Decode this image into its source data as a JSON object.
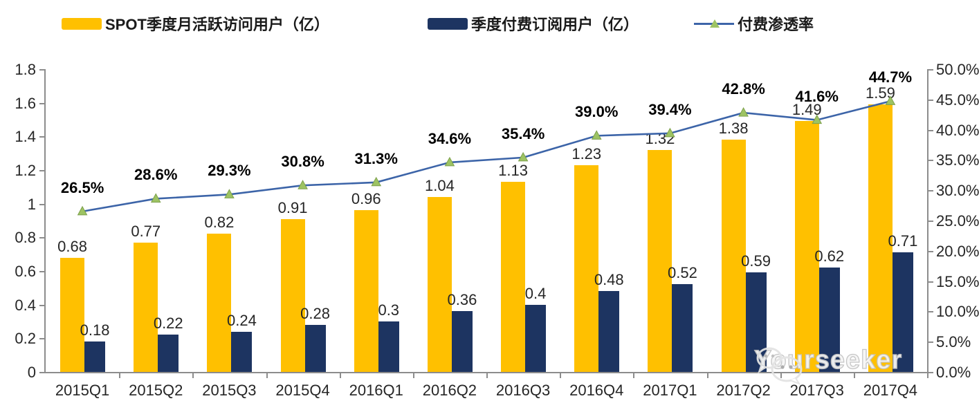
{
  "legend": [
    {
      "label": "SPOT季度月活跃访问用户（亿）",
      "color": "#FFC000",
      "type": "bar"
    },
    {
      "label": "季度付费订阅用户（亿）",
      "color": "#1D3461",
      "type": "bar"
    },
    {
      "label": "付费渗透率",
      "color": "#3C64A8",
      "marker_color": "#9DC363",
      "type": "line"
    }
  ],
  "chart_data": {
    "type": "bar+line",
    "categories": [
      "2015Q1",
      "2015Q2",
      "2015Q3",
      "2015Q4",
      "2016Q1",
      "2016Q2",
      "2016Q3",
      "2016Q4",
      "2017Q1",
      "2017Q2",
      "2017Q3",
      "2017Q4"
    ],
    "series": [
      {
        "name": "SPOT季度月活跃访问用户（亿）",
        "type": "bar",
        "axis": "left",
        "color": "#FFC000",
        "values": [
          0.68,
          0.77,
          0.82,
          0.91,
          0.96,
          1.04,
          1.13,
          1.23,
          1.32,
          1.38,
          1.49,
          1.59
        ],
        "labels": [
          "0.68",
          "0.77",
          "0.82",
          "0.91",
          "0.96",
          "1.04",
          "1.13",
          "1.23",
          "1.32",
          "1.38",
          "1.49",
          "1.59"
        ]
      },
      {
        "name": "季度付费订阅用户（亿）",
        "type": "bar",
        "axis": "left",
        "color": "#1D3461",
        "values": [
          0.18,
          0.22,
          0.24,
          0.28,
          0.3,
          0.36,
          0.4,
          0.48,
          0.52,
          0.59,
          0.62,
          0.71
        ],
        "labels": [
          "0.18",
          "0.22",
          "0.24",
          "0.28",
          "0.3",
          "0.36",
          "0.4",
          "0.48",
          "0.52",
          "0.59",
          "0.62",
          "0.71"
        ]
      },
      {
        "name": "付费渗透率",
        "type": "line",
        "axis": "right",
        "color": "#3C64A8",
        "marker": "triangle",
        "marker_color": "#9DC363",
        "values": [
          26.5,
          28.6,
          29.3,
          30.8,
          31.3,
          34.6,
          35.4,
          39.0,
          39.4,
          42.8,
          41.6,
          44.7
        ],
        "labels": [
          "26.5%",
          "28.6%",
          "29.3%",
          "30.8%",
          "31.3%",
          "34.6%",
          "35.4%",
          "39.0%",
          "39.4%",
          "42.8%",
          "41.6%",
          "44.7%"
        ]
      }
    ],
    "left_axis": {
      "min": 0,
      "max": 1.8,
      "step": 0.2,
      "ticks": [
        "0",
        "0.2",
        "0.4",
        "0.6",
        "0.8",
        "1",
        "1.2",
        "1.4",
        "1.6",
        "1.8"
      ]
    },
    "right_axis": {
      "min": 0,
      "max": 50,
      "step": 5,
      "ticks": [
        "0.0%",
        "5.0%",
        "10.0%",
        "15.0%",
        "20.0%",
        "25.0%",
        "30.0%",
        "35.0%",
        "40.0%",
        "45.0%",
        "50.0%"
      ]
    },
    "grid": false,
    "legend_position": "top"
  },
  "watermark": {
    "text": "Yourseeker",
    "icon": "wechat-icon"
  }
}
